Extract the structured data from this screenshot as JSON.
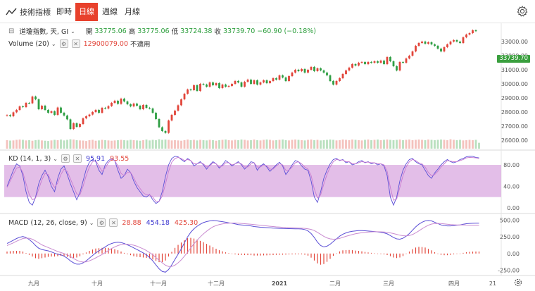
{
  "toolbar": {
    "indicator_label": "技術指標",
    "tabs": [
      {
        "label": "即時",
        "active": false
      },
      {
        "label": "日線",
        "active": true
      },
      {
        "label": "週線",
        "active": false
      },
      {
        "label": "月線",
        "active": false
      }
    ]
  },
  "main_legend": {
    "symbol": "道瓊指數, 天, GI",
    "open_label": "開",
    "open": "33775.06",
    "high_label": "高",
    "high": "33775.06",
    "low_label": "低",
    "low": "33724.38",
    "close_label": "收",
    "close": "33739.70",
    "change": "−60.90 (−0.18%)"
  },
  "volume_legend": {
    "label": "Volume (20)",
    "value": "12900079.00",
    "note": "不適用"
  },
  "kd_legend": {
    "label": "KD (14, 1, 3)",
    "k": "95.91",
    "d": "93.55"
  },
  "macd_legend": {
    "label": "MACD (12, 26, close, 9)",
    "hist": "28.88",
    "macd": "454.18",
    "signal": "425.30"
  },
  "last_price": "33739.70",
  "colors": {
    "up": "#e2453a",
    "down": "#2f9e44",
    "kd_band": "#d9a8e0",
    "k_line": "#5b4fd6",
    "d_line": "#c77bd1",
    "macd_line": "#5b4fd6",
    "signal_line": "#c98bd0",
    "accent": "#e8412c"
  },
  "chart_data": [
    {
      "type": "candlestick",
      "name": "price",
      "y_ticks": [
        26000,
        27000,
        28000,
        29000,
        30000,
        31000,
        32000,
        33000
      ],
      "ylim": [
        25400,
        34200
      ],
      "x_ticks": [
        "九月",
        "十月",
        "十一月",
        "十二月",
        "2021",
        "二月",
        "三月",
        "四月",
        "21"
      ],
      "close_series": [
        27780,
        27700,
        27980,
        28150,
        28400,
        28350,
        28650,
        28620,
        29100,
        28900,
        28200,
        28450,
        28150,
        27950,
        28050,
        27800,
        28320,
        27950,
        27750,
        27480,
        26800,
        27200,
        26950,
        27150,
        27550,
        27700,
        27820,
        28000,
        28150,
        27950,
        28300,
        28250,
        28420,
        28650,
        28800,
        28580,
        28950,
        28750,
        28550,
        28400,
        28600,
        28450,
        28200,
        28500,
        28300,
        28250,
        27950,
        27500,
        26920,
        26650,
        26520,
        27400,
        27800,
        28100,
        28480,
        28900,
        29300,
        29600,
        29550,
        29900,
        29500,
        30000,
        29950,
        29800,
        30100,
        29900,
        30050,
        29700,
        29950,
        29800,
        29850,
        30000,
        30200,
        30100,
        29800,
        30150,
        30300,
        30000,
        30250,
        29950,
        30100,
        30250,
        30050,
        30200,
        30400,
        30300,
        30600,
        30450,
        30200,
        30550,
        30800,
        31000,
        30900,
        31050,
        30800,
        31000,
        31200,
        30900,
        31100,
        30950,
        30800,
        30600,
        30200,
        29950,
        30200,
        30400,
        30700,
        30950,
        31150,
        31400,
        31300,
        31500,
        31550,
        31400,
        31550,
        31500,
        31600,
        31500,
        31650,
        31400,
        31900,
        31600,
        31250,
        30950,
        31550,
        31500,
        31800,
        32000,
        32300,
        32700,
        32900,
        33000,
        32850,
        32950,
        32800,
        32700,
        32500,
        32300,
        32600,
        32800,
        33000,
        33100,
        33000,
        32900,
        33300,
        33500,
        33600,
        33800,
        33740
      ],
      "volume_relative": [
        0.58,
        0.55,
        0.56,
        0.6,
        0.62,
        0.6,
        0.56,
        0.58,
        0.54,
        0.58,
        0.6,
        0.56,
        0.54,
        0.52,
        0.56,
        0.6,
        0.58,
        0.62,
        0.56,
        0.6,
        0.64,
        0.62,
        0.58,
        0.56,
        0.55,
        0.52,
        0.58,
        0.6,
        0.54,
        0.56,
        0.6,
        0.58,
        0.56,
        0.54,
        0.56,
        0.58,
        0.6,
        0.58,
        0.56,
        0.6,
        0.58,
        0.56,
        0.54,
        0.58,
        0.62,
        0.56,
        0.6,
        0.58,
        0.64,
        0.6,
        0.62,
        0.6,
        0.56,
        0.58,
        0.56,
        0.54,
        0.58,
        0.62,
        0.58,
        0.6,
        0.56,
        0.6,
        0.58,
        0.56,
        0.6,
        0.58,
        0.54,
        0.58,
        0.6,
        0.62,
        0.58,
        0.56,
        0.6,
        0.58,
        0.62,
        0.6,
        0.56,
        0.58,
        0.62,
        0.58,
        0.56,
        0.6,
        0.62,
        0.6,
        0.56,
        0.58,
        0.6,
        0.62,
        0.58,
        0.56,
        0.6,
        0.62,
        0.6,
        0.58,
        0.56,
        0.6,
        0.62,
        0.58,
        0.6,
        0.56,
        0.58,
        0.6,
        0.62,
        0.6,
        0.56,
        0.58,
        0.62,
        0.6,
        0.58,
        0.62,
        0.6,
        0.58,
        0.56,
        0.6,
        0.62,
        0.58,
        0.6,
        0.62,
        0.58,
        0.6,
        0.62,
        0.6,
        0.58,
        0.6,
        0.62,
        0.58,
        0.6,
        0.62,
        0.58,
        0.6,
        0.62,
        0.6,
        0.58,
        0.62,
        0.6,
        0.58,
        0.6,
        0.62,
        0.6,
        0.58,
        0.64,
        0.6,
        0.58,
        0.6,
        0.56,
        0.58,
        0.6,
        0.58,
        0.6,
        0.4
      ]
    },
    {
      "type": "line",
      "name": "kd",
      "y_ticks": [
        0,
        40,
        80
      ],
      "ylim": [
        -8,
        105
      ],
      "band": [
        20,
        80
      ],
      "series": [
        {
          "values": [
            40,
            55,
            70,
            82,
            78,
            60,
            30,
            10,
            5,
            20,
            45,
            60,
            70,
            58,
            40,
            30,
            55,
            72,
            78,
            62,
            45,
            30,
            15,
            28,
            50,
            72,
            85,
            90,
            86,
            70,
            62,
            80,
            88,
            92,
            88,
            70,
            55,
            60,
            72,
            66,
            50,
            38,
            30,
            22,
            20,
            25,
            15,
            8,
            12,
            30,
            58,
            80,
            92,
            96,
            95,
            90,
            86,
            92,
            88,
            78,
            82,
            86,
            80,
            72,
            80,
            86,
            82,
            74,
            80,
            88,
            84,
            78,
            82,
            86,
            80,
            72,
            78,
            86,
            84,
            70,
            78,
            82,
            76,
            68,
            74,
            80,
            85,
            78,
            62,
            70,
            80,
            88,
            86,
            78,
            72,
            70,
            50,
            20,
            10,
            30,
            55,
            70,
            82,
            90,
            92,
            88,
            90,
            84,
            86,
            80,
            82,
            86,
            88,
            84,
            86,
            82,
            84,
            80,
            82,
            78,
            60,
            20,
            5,
            20,
            50,
            70,
            82,
            90,
            92,
            86,
            82,
            80,
            70,
            60,
            55,
            65,
            72,
            80,
            86,
            90,
            86,
            84,
            86,
            90,
            92,
            95,
            96,
            95.91,
            94,
            93
          ]
        },
        {
          "values": [
            38,
            50,
            62,
            74,
            76,
            66,
            45,
            25,
            15,
            18,
            35,
            52,
            64,
            62,
            48,
            38,
            46,
            62,
            72,
            68,
            54,
            40,
            26,
            24,
            40,
            60,
            76,
            86,
            88,
            78,
            68,
            74,
            84,
            90,
            88,
            78,
            64,
            60,
            66,
            66,
            56,
            44,
            36,
            28,
            24,
            24,
            20,
            12,
            12,
            22,
            44,
            68,
            85,
            92,
            94,
            92,
            88,
            90,
            88,
            82,
            82,
            84,
            82,
            76,
            78,
            84,
            82,
            76,
            78,
            84,
            84,
            80,
            82,
            84,
            82,
            76,
            76,
            82,
            84,
            76,
            76,
            80,
            78,
            72,
            72,
            78,
            82,
            80,
            70,
            70,
            76,
            84,
            86,
            82,
            76,
            72,
            60,
            35,
            18,
            24,
            44,
            62,
            76,
            86,
            90,
            89,
            89,
            86,
            86,
            82,
            82,
            84,
            86,
            85,
            85,
            84,
            84,
            82,
            82,
            80,
            68,
            38,
            14,
            16,
            38,
            60,
            76,
            86,
            90,
            88,
            84,
            82,
            76,
            66,
            60,
            62,
            68,
            76,
            82,
            88,
            87,
            86,
            86,
            88,
            90,
            93,
            94,
            93.55,
            93,
            92
          ]
        }
      ]
    },
    {
      "type": "line",
      "name": "macd",
      "y_ticks": [
        -250,
        0,
        250,
        500
      ],
      "ylim": [
        -330,
        580
      ],
      "series": [
        {
          "values": [
            150,
            175,
            200,
            225,
            245,
            255,
            240,
            210,
            170,
            120,
            80,
            60,
            50,
            40,
            25,
            5,
            -10,
            -20,
            -40,
            -70,
            -110,
            -140,
            -160,
            -160,
            -140,
            -110,
            -70,
            -30,
            10,
            40,
            70,
            100,
            130,
            150,
            165,
            170,
            165,
            150,
            130,
            110,
            85,
            60,
            35,
            10,
            -20,
            -60,
            -110,
            -170,
            -230,
            -270,
            -280,
            -240,
            -170,
            -90,
            -10,
            70,
            160,
            250,
            320,
            370,
            410,
            440,
            465,
            480,
            490,
            495,
            492,
            485,
            478,
            470,
            462,
            455,
            445,
            435,
            430,
            425,
            420,
            415,
            405,
            400,
            395,
            392,
            388,
            385,
            382,
            380,
            378,
            376,
            375,
            374,
            373,
            372,
            370,
            368,
            360,
            340,
            300,
            240,
            170,
            120,
            100,
            110,
            140,
            180,
            220,
            260,
            290,
            310,
            325,
            335,
            340,
            345,
            345,
            342,
            338,
            335,
            330,
            325,
            318,
            310,
            295,
            270,
            240,
            220,
            215,
            230,
            260,
            300,
            350,
            400,
            440,
            470,
            490,
            495,
            490,
            470,
            450,
            430,
            420,
            415,
            415,
            420,
            425,
            430,
            440,
            448,
            452,
            454.18,
            455,
            456
          ]
        },
        {
          "values": [
            120,
            140,
            160,
            185,
            205,
            225,
            232,
            230,
            215,
            190,
            160,
            130,
            110,
            90,
            70,
            50,
            30,
            15,
            0,
            -20,
            -45,
            -75,
            -100,
            -120,
            -128,
            -125,
            -110,
            -90,
            -65,
            -40,
            -15,
            15,
            45,
            75,
            100,
            120,
            135,
            140,
            140,
            135,
            125,
            110,
            90,
            70,
            45,
            15,
            -20,
            -60,
            -100,
            -140,
            -175,
            -195,
            -195,
            -175,
            -140,
            -95,
            -40,
            20,
            85,
            145,
            200,
            250,
            295,
            335,
            370,
            400,
            420,
            435,
            445,
            452,
            456,
            458,
            458,
            456,
            452,
            448,
            444,
            440,
            435,
            430,
            425,
            420,
            415,
            410,
            405,
            400,
            397,
            394,
            391,
            388,
            386,
            384,
            382,
            380,
            378,
            372,
            362,
            345,
            318,
            288,
            258,
            235,
            220,
            215,
            218,
            228,
            242,
            258,
            272,
            285,
            296,
            305,
            312,
            318,
            322,
            325,
            327,
            327,
            326,
            323,
            318,
            310,
            300,
            288,
            275,
            268,
            265,
            270,
            285,
            310,
            340,
            372,
            400,
            425,
            442,
            450,
            452,
            450,
            445,
            440,
            435,
            432,
            430,
            430,
            430,
            428,
            427,
            425.3,
            425,
            426
          ]
        },
        {
          "values": [
            30,
            35,
            40,
            40,
            40,
            30,
            8,
            -20,
            -45,
            -70,
            -80,
            -70,
            -60,
            -50,
            -45,
            -45,
            -40,
            -35,
            -40,
            -50,
            -65,
            -65,
            -60,
            -40,
            -12,
            15,
            40,
            60,
            75,
            80,
            85,
            85,
            85,
            75,
            65,
            50,
            30,
            10,
            -10,
            -25,
            -40,
            -50,
            -55,
            -60,
            -65,
            -75,
            -90,
            -110,
            -130,
            -130,
            -105,
            -45,
            25,
            85,
            130,
            165,
            200,
            230,
            235,
            225,
            210,
            190,
            170,
            145,
            120,
            95,
            72,
            50,
            33,
            18,
            6,
            -3,
            -13,
            -21,
            -22,
            -23,
            -24,
            -25,
            -30,
            -30,
            -30,
            -28,
            -27,
            -25,
            -23,
            -20,
            -19,
            -18,
            -16,
            -14,
            -13,
            -12,
            -12,
            -12,
            -18,
            -32,
            -62,
            -105,
            -148,
            -168,
            -158,
            -125,
            -80,
            -35,
            2,
            32,
            48,
            52,
            53,
            50,
            44,
            40,
            33,
            24,
            16,
            10,
            3,
            -2,
            -8,
            -13,
            -23,
            -40,
            -60,
            -68,
            -60,
            -38,
            -5,
            30,
            65,
            90,
            100,
            98,
            90,
            70,
            48,
            20,
            -2,
            -20,
            -25,
            -25,
            -20,
            -12,
            -5,
            0,
            10,
            20,
            25,
            28.88,
            30,
            30
          ]
        }
      ]
    }
  ]
}
